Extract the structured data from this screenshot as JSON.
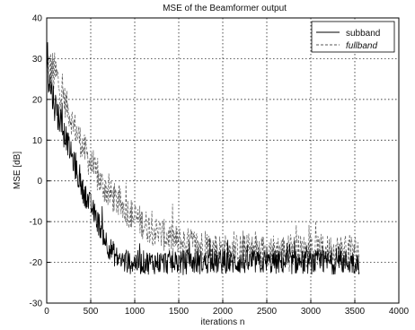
{
  "chart_data": {
    "type": "line",
    "title": "MSE of the Beamformer output",
    "xlabel": "iterations n",
    "ylabel": "MSE [dB]",
    "xlim": [
      0,
      4000
    ],
    "ylim": [
      -30,
      40
    ],
    "xticks": [
      0,
      500,
      1000,
      1500,
      2000,
      2500,
      3000,
      3500,
      4000
    ],
    "yticks": [
      -30,
      -20,
      -10,
      0,
      10,
      20,
      30,
      40
    ],
    "grid": true,
    "grid_style": "dotted",
    "legend_position": "top-right",
    "series": [
      {
        "name": "subband",
        "style": "solid",
        "color": "#000000",
        "x_range": [
          0,
          3550
        ],
        "trend": [
          [
            0,
            27
          ],
          [
            100,
            18
          ],
          [
            200,
            12
          ],
          [
            300,
            5
          ],
          [
            400,
            -2
          ],
          [
            500,
            -6
          ],
          [
            600,
            -11
          ],
          [
            700,
            -16
          ],
          [
            800,
            -19
          ],
          [
            900,
            -20
          ],
          [
            1200,
            -20
          ],
          [
            2000,
            -20
          ],
          [
            3000,
            -20
          ],
          [
            3550,
            -20
          ]
        ],
        "noise_amplitude_db": 3
      },
      {
        "name": "fullband",
        "style": "dashed",
        "color": "#555555",
        "x_range": [
          0,
          3550
        ],
        "trend": [
          [
            0,
            28
          ],
          [
            100,
            26
          ],
          [
            200,
            20
          ],
          [
            300,
            14
          ],
          [
            400,
            9
          ],
          [
            500,
            4
          ],
          [
            600,
            0
          ],
          [
            700,
            -3
          ],
          [
            800,
            -5
          ],
          [
            1000,
            -9
          ],
          [
            1200,
            -12
          ],
          [
            1500,
            -15
          ],
          [
            1800,
            -16
          ],
          [
            2000,
            -17
          ],
          [
            2500,
            -17
          ],
          [
            3000,
            -17
          ],
          [
            3550,
            -17
          ]
        ],
        "noise_amplitude_db": 4
      }
    ]
  }
}
